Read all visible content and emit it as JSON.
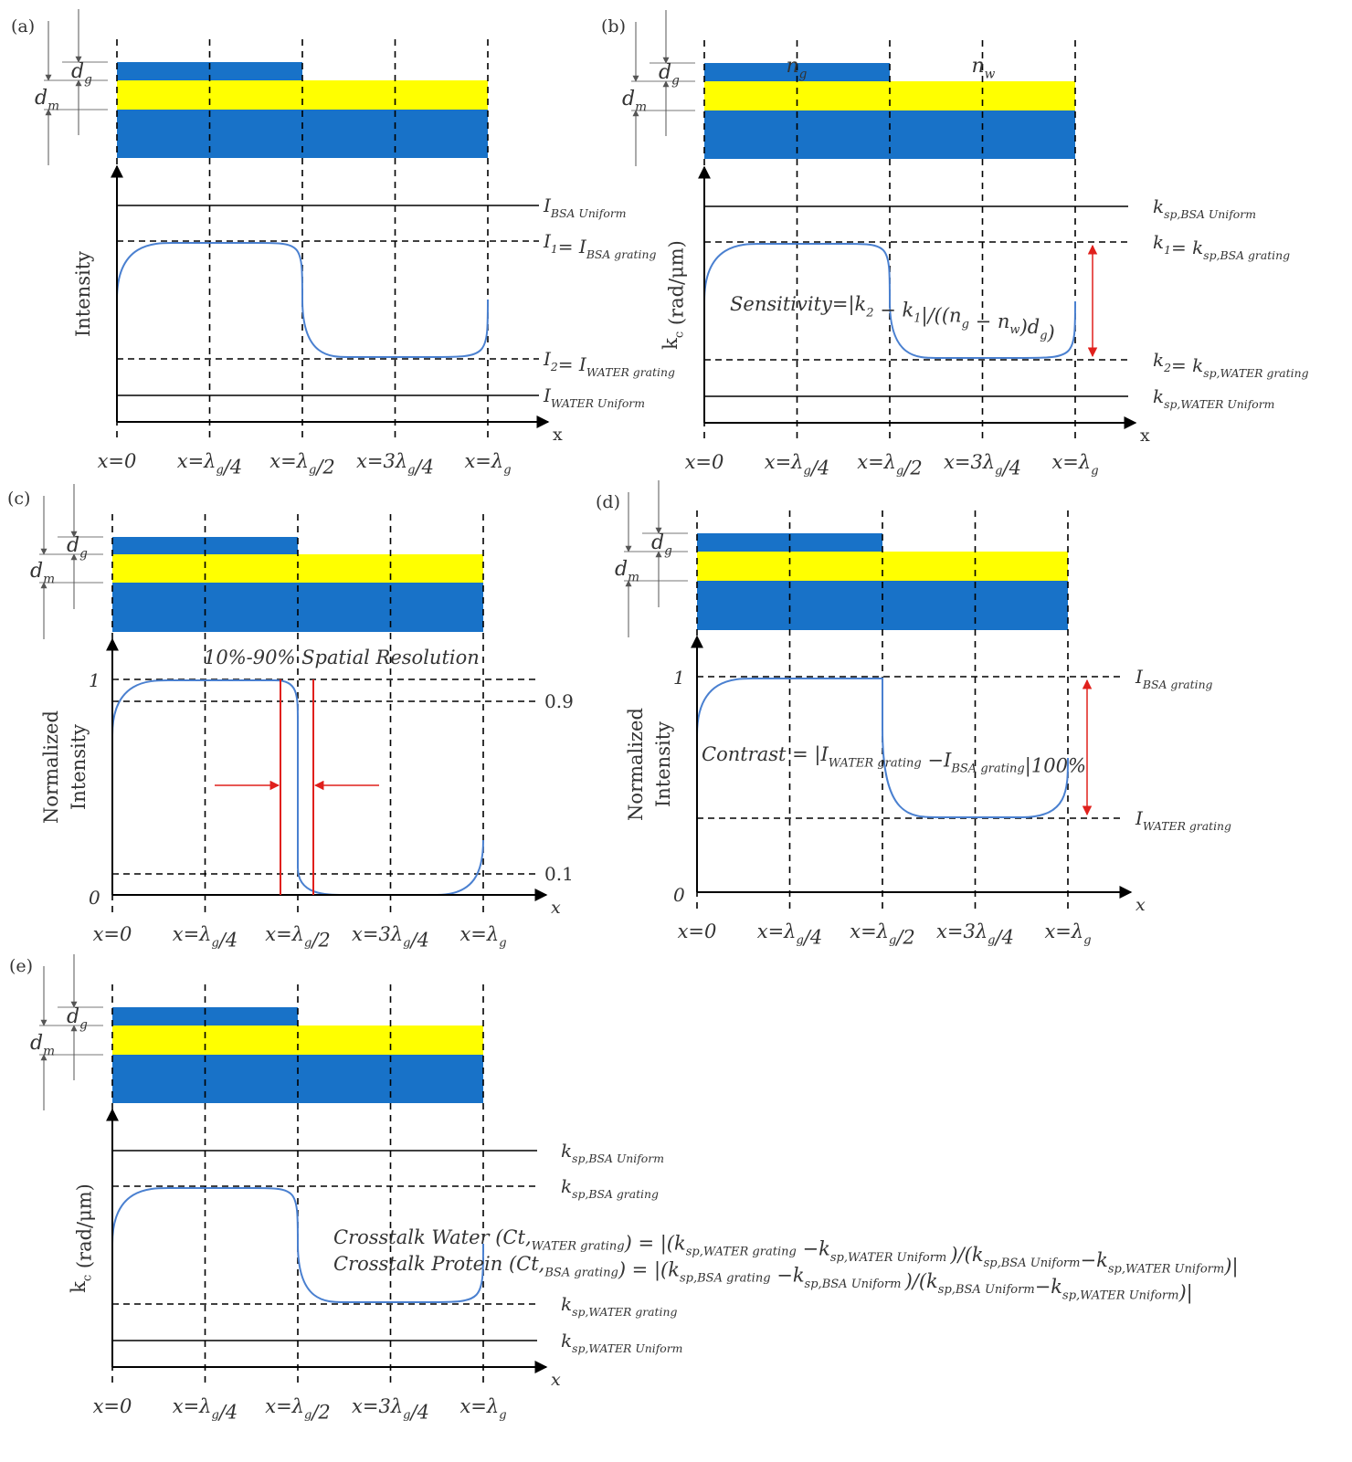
{
  "colors": {
    "substrate": "#1872c8",
    "metal": "#ffff00",
    "curve": "#4a80d0",
    "marker": "#e0201c",
    "axis": "#000000"
  },
  "dimension_labels": {
    "dg": "d_{g}",
    "dm": "d_{m}"
  },
  "tick_labels": [
    "x=0",
    "x=λ_{g}/4",
    "x=λ_{g}/2",
    "x=3λ_{g}/4",
    "x=λ_{g}"
  ],
  "panels": [
    {
      "letter": "(a)",
      "ylabel": [
        "Intensity"
      ],
      "xlabel": "x",
      "curve": "smooth",
      "lines": [
        {
          "style": "solid",
          "label": "I_{BSA Uniform}"
        },
        {
          "style": "dashed",
          "label": "I_{1}= I_{BSA grating}"
        },
        {
          "style": "dashed",
          "label": "I_{2}= I_{WATER grating}"
        },
        {
          "style": "solid",
          "label": "I_{WATER Uniform}"
        }
      ]
    },
    {
      "letter": "(b)",
      "ylabel": [
        "k_{c} (rad/μm)"
      ],
      "xlabel": "x",
      "curve": "smooth",
      "layer_labels": [
        "n_{g}",
        "n_{w}"
      ],
      "formula": [
        "Sensitivity=|k_{2} − k_{1}|/((n_{g} − n_{w})d_{g})"
      ],
      "lines": [
        {
          "style": "solid",
          "label": "k_{sp,BSA Uniform}"
        },
        {
          "style": "dashed",
          "label": "k_{1}= k_{sp,BSA grating}"
        },
        {
          "style": "dashed",
          "label": "k_{2}= k_{sp,WATER grating}"
        },
        {
          "style": "solid",
          "label": "k_{sp,WATER Uniform}"
        }
      ]
    },
    {
      "letter": "(c)",
      "ylabel": [
        "Normalized",
        "Intensity"
      ],
      "xlabel": "x",
      "curve": "sharp",
      "title": "10%-90% Spatial Resolution",
      "y_ticks": [
        "1",
        "0"
      ],
      "lines": [
        {
          "style": "dashed",
          "label": ""
        },
        {
          "style": "dashed",
          "label": "0.9"
        },
        {
          "style": "dashed",
          "label": "0.1"
        }
      ]
    },
    {
      "letter": "(d)",
      "ylabel": [
        "Normalized",
        "Intensity"
      ],
      "xlabel": "x",
      "curve": "step",
      "y_ticks": [
        "1",
        "0"
      ],
      "formula": [
        "Contrast = |I_{WATER grating} −I_{BSA grating}|100%"
      ],
      "lines": [
        {
          "style": "dashed",
          "label": "I_{BSA grating}"
        },
        {
          "style": "dashed",
          "label": "I_{WATER grating}"
        }
      ]
    },
    {
      "letter": "(e)",
      "ylabel": [
        "k_{c} (rad/μm)"
      ],
      "xlabel": "x",
      "curve": "smooth",
      "formula": [
        "Crosstalk Water (Ct,_{WATER grating}) = |(k_{sp,WATER grating} −k_{sp,WATER Uniform })/(k_{sp,BSA Uniform}−k_{sp,WATER Uniform})|",
        "Crosstalk Protein (Ct,_{BSA grating}) = |(k_{sp,BSA grating} −k_{sp,BSA Uniform })/(k_{sp,BSA Uniform}−k_{sp,WATER Uniform})|"
      ],
      "lines": [
        {
          "style": "solid",
          "label": "k_{sp,BSA Uniform}"
        },
        {
          "style": "dashed",
          "label": "k_{sp,BSA grating}"
        },
        {
          "style": "dashed",
          "label": "k_{sp,WATER grating}"
        },
        {
          "style": "solid",
          "label": "k_{sp,WATER Uniform}"
        }
      ]
    }
  ]
}
